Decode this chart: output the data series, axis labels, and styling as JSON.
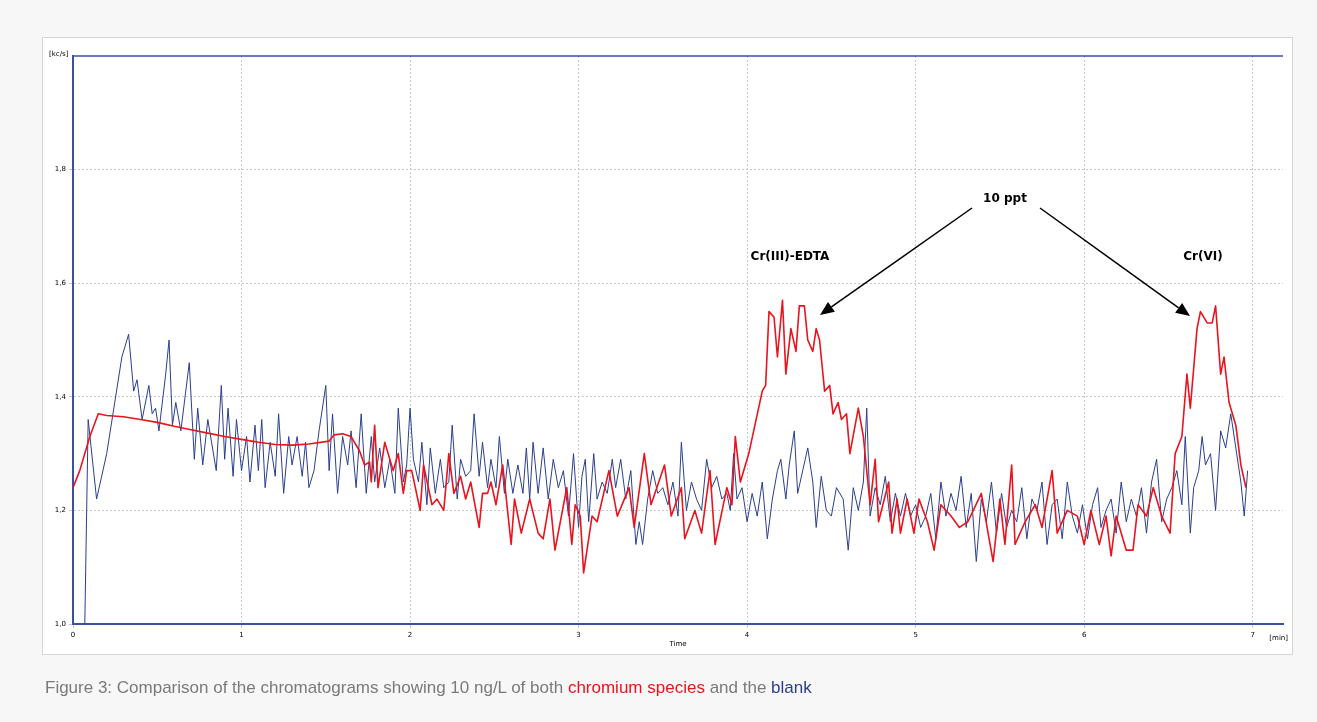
{
  "chart_data": {
    "type": "line",
    "xlabel": "Time",
    "ylabel": "[kc/s]",
    "xlim": [
      0,
      7.18
    ],
    "ylim": [
      1.0,
      2.0
    ],
    "xticks": [
      0,
      1,
      2,
      3,
      4,
      5,
      6,
      7
    ],
    "yticks": [
      {
        "value": 1.0,
        "label": "1,0"
      },
      {
        "value": 1.2,
        "label": "1,2"
      },
      {
        "value": 1.4,
        "label": "1,4"
      },
      {
        "value": 1.6,
        "label": "1,6"
      },
      {
        "value": 1.8,
        "label": "1,8"
      }
    ],
    "grid": true,
    "legend": false,
    "marker": "none",
    "line_style": "solid",
    "annotations": [
      "Figure 3: Comparison of the chromatograms showing 10 ng/L of both",
      "and the",
      "[min]",
      "Cr(III)-EDTA",
      "10 ppt",
      "Cr(VI)"
    ],
    "series": [
      {
        "name": "chromium species",
        "color": "#e8141e",
        "x": [
          0,
          0.04,
          0.1,
          0.15,
          0.2,
          0.3,
          0.4,
          0.5,
          0.6,
          0.7,
          0.8,
          0.9,
          1.0,
          1.1,
          1.2,
          1.3,
          1.4,
          1.52,
          1.55,
          1.6,
          1.65,
          1.7,
          1.73,
          1.76,
          1.77,
          1.79,
          1.81,
          1.85,
          1.9,
          1.93,
          1.96,
          1.98,
          2.01,
          2.06,
          2.08,
          2.13,
          2.16,
          2.2,
          2.23,
          2.26,
          2.3,
          2.33,
          2.36,
          2.41,
          2.43,
          2.46,
          2.48,
          2.51,
          2.55,
          2.6,
          2.62,
          2.66,
          2.71,
          2.76,
          2.79,
          2.83,
          2.86,
          2.93,
          2.96,
          2.98,
          3.01,
          3.03,
          3.08,
          3.11,
          3.18,
          3.23,
          3.3,
          3.33,
          3.39,
          3.43,
          3.51,
          3.55,
          3.61,
          3.63,
          3.69,
          3.73,
          3.78,
          3.81,
          3.88,
          3.91,
          3.93,
          3.96,
          4.01,
          4.09,
          4.11,
          4.13,
          4.16,
          4.18,
          4.21,
          4.23,
          4.26,
          4.29,
          4.31,
          4.34,
          4.36,
          4.39,
          4.41,
          4.43,
          4.46,
          4.49,
          4.51,
          4.54,
          4.56,
          4.59,
          4.61,
          4.66,
          4.69,
          4.73,
          4.76,
          4.78,
          4.84,
          4.86,
          4.89,
          4.91,
          4.95,
          4.99,
          5.02,
          5.07,
          5.11,
          5.15,
          5.21,
          5.26,
          5.31,
          5.39,
          5.43,
          5.46,
          5.5,
          5.53,
          5.57,
          5.59,
          5.65,
          5.71,
          5.75,
          5.81,
          5.84,
          5.9,
          5.96,
          6.0,
          6.04,
          6.09,
          6.13,
          6.16,
          6.19,
          6.25,
          6.29,
          6.32,
          6.37,
          6.41,
          6.46,
          6.51,
          6.54,
          6.58,
          6.61,
          6.63,
          6.67,
          6.69,
          6.73,
          6.76,
          6.78,
          6.81,
          6.83,
          6.86,
          6.9,
          6.93,
          6.96
        ],
        "values": [
          1.24,
          1.27,
          1.33,
          1.37,
          1.367,
          1.365,
          1.36,
          1.355,
          1.348,
          1.342,
          1.336,
          1.33,
          1.325,
          1.32,
          1.316,
          1.315,
          1.317,
          1.322,
          1.333,
          1.335,
          1.33,
          1.305,
          1.28,
          1.285,
          1.25,
          1.35,
          1.24,
          1.32,
          1.27,
          1.3,
          1.23,
          1.27,
          1.27,
          1.2,
          1.28,
          1.21,
          1.22,
          1.2,
          1.3,
          1.23,
          1.26,
          1.22,
          1.25,
          1.17,
          1.23,
          1.23,
          1.25,
          1.21,
          1.28,
          1.14,
          1.22,
          1.16,
          1.22,
          1.16,
          1.15,
          1.22,
          1.13,
          1.24,
          1.14,
          1.21,
          1.19,
          1.09,
          1.19,
          1.18,
          1.27,
          1.19,
          1.24,
          1.17,
          1.3,
          1.21,
          1.28,
          1.19,
          1.24,
          1.15,
          1.2,
          1.16,
          1.27,
          1.14,
          1.24,
          1.21,
          1.33,
          1.25,
          1.3,
          1.41,
          1.42,
          1.55,
          1.54,
          1.47,
          1.57,
          1.44,
          1.52,
          1.48,
          1.56,
          1.56,
          1.5,
          1.48,
          1.52,
          1.5,
          1.41,
          1.42,
          1.37,
          1.39,
          1.36,
          1.37,
          1.3,
          1.38,
          1.33,
          1.21,
          1.29,
          1.18,
          1.25,
          1.16,
          1.22,
          1.16,
          1.22,
          1.16,
          1.22,
          1.18,
          1.13,
          1.21,
          1.19,
          1.17,
          1.18,
          1.23,
          1.16,
          1.11,
          1.22,
          1.14,
          1.28,
          1.14,
          1.18,
          1.21,
          1.17,
          1.27,
          1.16,
          1.2,
          1.19,
          1.14,
          1.2,
          1.14,
          1.19,
          1.12,
          1.19,
          1.13,
          1.13,
          1.21,
          1.19,
          1.24,
          1.19,
          1.16,
          1.3,
          1.33,
          1.44,
          1.38,
          1.52,
          1.55,
          1.53,
          1.53,
          1.56,
          1.44,
          1.47,
          1.39,
          1.35,
          1.28,
          1.24
        ]
      },
      {
        "name": "blank",
        "color": "#2b3f8f",
        "x": [
          0.07,
          0.09,
          0.14,
          0.2,
          0.29,
          0.33,
          0.36,
          0.38,
          0.41,
          0.45,
          0.47,
          0.49,
          0.51,
          0.55,
          0.57,
          0.59,
          0.61,
          0.64,
          0.69,
          0.72,
          0.74,
          0.77,
          0.8,
          0.85,
          0.88,
          0.9,
          0.92,
          0.95,
          0.97,
          1.0,
          1.03,
          1.05,
          1.08,
          1.1,
          1.12,
          1.14,
          1.17,
          1.2,
          1.22,
          1.25,
          1.28,
          1.3,
          1.33,
          1.36,
          1.38,
          1.4,
          1.43,
          1.46,
          1.5,
          1.52,
          1.54,
          1.57,
          1.6,
          1.63,
          1.65,
          1.68,
          1.71,
          1.74,
          1.77,
          1.79,
          1.82,
          1.85,
          1.88,
          1.91,
          1.93,
          1.96,
          1.98,
          2.0,
          2.02,
          2.05,
          2.07,
          2.1,
          2.12,
          2.15,
          2.18,
          2.2,
          2.23,
          2.25,
          2.28,
          2.3,
          2.33,
          2.36,
          2.38,
          2.41,
          2.43,
          2.46,
          2.48,
          2.51,
          2.53,
          2.56,
          2.58,
          2.61,
          2.64,
          2.67,
          2.69,
          2.71,
          2.73,
          2.76,
          2.79,
          2.82,
          2.85,
          2.88,
          2.91,
          2.94,
          2.97,
          3.0,
          3.02,
          3.04,
          3.06,
          3.09,
          3.11,
          3.14,
          3.17,
          3.2,
          3.22,
          3.25,
          3.28,
          3.31,
          3.34,
          3.36,
          3.38,
          3.41,
          3.44,
          3.47,
          3.5,
          3.53,
          3.56,
          3.59,
          3.61,
          3.64,
          3.67,
          3.7,
          3.73,
          3.76,
          3.79,
          3.82,
          3.85,
          3.88,
          3.9,
          3.92,
          3.94,
          3.97,
          4.0,
          4.03,
          4.06,
          4.09,
          4.12,
          4.15,
          4.18,
          4.2,
          4.23,
          4.25,
          4.28,
          4.3,
          4.33,
          4.36,
          4.39,
          4.41,
          4.44,
          4.47,
          4.5,
          4.53,
          4.57,
          4.6,
          4.63,
          4.66,
          4.69,
          4.71,
          4.73,
          4.76,
          4.79,
          4.82,
          4.85,
          4.88,
          4.91,
          4.94,
          4.97,
          5.0,
          5.03,
          5.06,
          5.09,
          5.12,
          5.15,
          5.18,
          5.21,
          5.24,
          5.27,
          5.3,
          5.33,
          5.36,
          5.39,
          5.42,
          5.45,
          5.48,
          5.51,
          5.54,
          5.57,
          5.6,
          5.63,
          5.66,
          5.69,
          5.72,
          5.75,
          5.78,
          5.81,
          5.84,
          5.87,
          5.9,
          5.93,
          5.96,
          5.99,
          6.02,
          6.05,
          6.08,
          6.1,
          6.13,
          6.16,
          6.19,
          6.22,
          6.25,
          6.28,
          6.31,
          6.34,
          6.37,
          6.4,
          6.43,
          6.46,
          6.49,
          6.52,
          6.55,
          6.58,
          6.6,
          6.63,
          6.65,
          6.68,
          6.7,
          6.72,
          6.75,
          6.78,
          6.81,
          6.84,
          6.87,
          6.9,
          6.93,
          6.95,
          6.97
        ],
        "values": [
          1.0,
          1.36,
          1.22,
          1.3,
          1.47,
          1.51,
          1.41,
          1.43,
          1.36,
          1.42,
          1.37,
          1.38,
          1.34,
          1.44,
          1.5,
          1.35,
          1.39,
          1.34,
          1.46,
          1.29,
          1.38,
          1.28,
          1.36,
          1.27,
          1.42,
          1.29,
          1.38,
          1.26,
          1.36,
          1.27,
          1.33,
          1.25,
          1.35,
          1.27,
          1.36,
          1.24,
          1.32,
          1.26,
          1.37,
          1.23,
          1.33,
          1.28,
          1.33,
          1.26,
          1.32,
          1.24,
          1.27,
          1.34,
          1.42,
          1.27,
          1.37,
          1.23,
          1.33,
          1.28,
          1.34,
          1.24,
          1.37,
          1.23,
          1.33,
          1.25,
          1.31,
          1.24,
          1.29,
          1.23,
          1.38,
          1.25,
          1.28,
          1.38,
          1.29,
          1.25,
          1.32,
          1.21,
          1.31,
          1.23,
          1.29,
          1.24,
          1.25,
          1.35,
          1.22,
          1.29,
          1.26,
          1.27,
          1.37,
          1.26,
          1.32,
          1.24,
          1.29,
          1.24,
          1.33,
          1.23,
          1.29,
          1.23,
          1.28,
          1.23,
          1.31,
          1.22,
          1.32,
          1.23,
          1.31,
          1.22,
          1.29,
          1.24,
          1.27,
          1.19,
          1.3,
          1.17,
          1.26,
          1.29,
          1.18,
          1.3,
          1.22,
          1.25,
          1.23,
          1.29,
          1.24,
          1.29,
          1.22,
          1.27,
          1.14,
          1.18,
          1.14,
          1.22,
          1.27,
          1.23,
          1.24,
          1.21,
          1.25,
          1.19,
          1.32,
          1.2,
          1.25,
          1.22,
          1.2,
          1.29,
          1.24,
          1.26,
          1.22,
          1.23,
          1.2,
          1.3,
          1.22,
          1.24,
          1.18,
          1.23,
          1.19,
          1.25,
          1.15,
          1.22,
          1.27,
          1.29,
          1.22,
          1.28,
          1.34,
          1.23,
          1.27,
          1.31,
          1.25,
          1.17,
          1.26,
          1.2,
          1.19,
          1.24,
          1.22,
          1.13,
          1.24,
          1.2,
          1.25,
          1.38,
          1.19,
          1.24,
          1.21,
          1.26,
          1.18,
          1.23,
          1.19,
          1.23,
          1.19,
          1.21,
          1.17,
          1.19,
          1.23,
          1.15,
          1.25,
          1.19,
          1.23,
          1.2,
          1.26,
          1.17,
          1.23,
          1.11,
          1.22,
          1.18,
          1.25,
          1.16,
          1.23,
          1.17,
          1.2,
          1.18,
          1.24,
          1.15,
          1.22,
          1.2,
          1.25,
          1.14,
          1.21,
          1.22,
          1.15,
          1.25,
          1.19,
          1.16,
          1.21,
          1.15,
          1.21,
          1.24,
          1.17,
          1.2,
          1.22,
          1.16,
          1.25,
          1.18,
          1.22,
          1.19,
          1.24,
          1.16,
          1.25,
          1.29,
          1.18,
          1.22,
          1.24,
          1.27,
          1.21,
          1.33,
          1.16,
          1.24,
          1.27,
          1.33,
          1.28,
          1.3,
          1.2,
          1.34,
          1.31,
          1.37,
          1.31,
          1.25,
          1.19,
          1.27
        ]
      }
    ]
  }
}
